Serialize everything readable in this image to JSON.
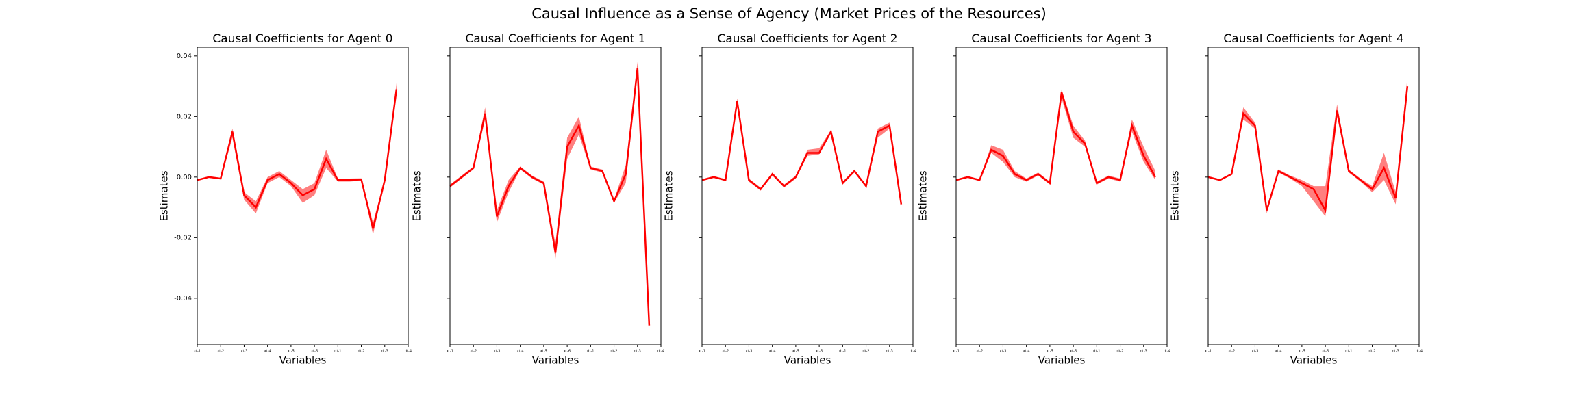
{
  "title": "Causal Influence as a Sense of Agency (Market Prices of the Resources)",
  "chart_data": [
    {
      "type": "line",
      "title": "Causal Coefficients for Agent 0",
      "xlabel": "Variables",
      "ylabel": "Estimates",
      "color": "#ff0000",
      "x": [
        0,
        1,
        2,
        3,
        4,
        5,
        6,
        7,
        8,
        9,
        10,
        11,
        12,
        13,
        14,
        15,
        16,
        17
      ],
      "values": [
        -0.001,
        0.0,
        -0.0005,
        0.015,
        -0.006,
        -0.01,
        -0.001,
        0.001,
        -0.002,
        -0.006,
        -0.004,
        0.006,
        -0.001,
        -0.001,
        -0.0008,
        -0.017,
        -0.001,
        0.029
      ],
      "lower": [
        -0.0012,
        -0.0002,
        -0.0008,
        0.013,
        -0.0075,
        -0.012,
        -0.002,
        0.0,
        -0.003,
        -0.0085,
        -0.006,
        0.003,
        -0.0015,
        -0.0015,
        -0.0012,
        -0.019,
        -0.0015,
        0.027
      ],
      "upper": [
        -0.0008,
        0.0003,
        -0.0002,
        0.016,
        -0.005,
        -0.008,
        0.0,
        0.002,
        -0.001,
        -0.004,
        -0.002,
        0.009,
        -0.0005,
        -0.0005,
        -0.0004,
        -0.015,
        -0.0005,
        0.031
      ],
      "xlim": [
        0,
        18
      ],
      "ylim": [
        -0.0554,
        0.0429
      ],
      "yticks": [
        0.04,
        0.02,
        {
          "value": 0,
          "label": "0.00"
        },
        -0.02,
        -0.04
      ],
      "xticks": [
        {
          "value": 0,
          "label": "xt-1"
        },
        {
          "value": 2,
          "label": "xt-2"
        },
        {
          "value": 4,
          "label": "xt-3"
        },
        {
          "value": 6,
          "label": "xt-4"
        },
        {
          "value": 8,
          "label": "xt-5"
        },
        {
          "value": 10,
          "label": "xt-6"
        },
        {
          "value": 12,
          "label": "dt-1"
        },
        {
          "value": 14,
          "label": "dt-2"
        },
        {
          "value": 16,
          "label": "dt-3"
        },
        {
          "value": 18,
          "label": "dt-4"
        }
      ]
    },
    {
      "type": "line",
      "title": "Causal Coefficients for Agent 1",
      "xlabel": "Variables",
      "ylabel": "Estimates",
      "color": "#ff0000",
      "x": [
        0,
        1,
        2,
        3,
        4,
        5,
        6,
        7,
        8,
        9,
        10,
        11,
        12,
        13,
        14,
        15,
        16,
        17
      ],
      "values": [
        -0.003,
        0.0,
        0.003,
        0.021,
        -0.013,
        -0.003,
        0.003,
        0.0,
        -0.002,
        -0.025,
        0.01,
        0.017,
        0.003,
        0.002,
        -0.008,
        0.001,
        0.036,
        -0.049
      ],
      "lower": [
        -0.0035,
        -0.0005,
        0.0025,
        0.019,
        -0.015,
        -0.005,
        0.0025,
        -0.0005,
        -0.0025,
        -0.027,
        0.006,
        0.014,
        0.0025,
        0.0015,
        -0.0085,
        -0.002,
        0.034,
        -0.051
      ],
      "upper": [
        -0.0025,
        0.0005,
        0.0035,
        0.023,
        -0.011,
        -0.001,
        0.0035,
        0.0005,
        -0.0015,
        -0.022,
        0.013,
        0.02,
        0.0035,
        0.0025,
        -0.0075,
        0.004,
        0.038,
        -0.047
      ],
      "xlim": [
        0,
        18
      ],
      "ylim": [
        -0.0554,
        0.0429
      ],
      "yticks": [
        0.04,
        0.02,
        0,
        -0.02,
        -0.04
      ],
      "xticks": [
        {
          "value": 0,
          "label": "xt-1"
        },
        {
          "value": 2,
          "label": "xt-2"
        },
        {
          "value": 4,
          "label": "xt-3"
        },
        {
          "value": 6,
          "label": "xt-4"
        },
        {
          "value": 8,
          "label": "xt-5"
        },
        {
          "value": 10,
          "label": "xt-6"
        },
        {
          "value": 12,
          "label": "dt-1"
        },
        {
          "value": 14,
          "label": "dt-2"
        },
        {
          "value": 16,
          "label": "dt-3"
        },
        {
          "value": 18,
          "label": "dt-4"
        }
      ]
    },
    {
      "type": "line",
      "title": "Causal Coefficients for Agent 2",
      "xlabel": "Variables",
      "ylabel": "Estimates",
      "color": "#ff0000",
      "x": [
        0,
        1,
        2,
        3,
        4,
        5,
        6,
        7,
        8,
        9,
        10,
        11,
        12,
        13,
        14,
        15,
        16,
        17
      ],
      "values": [
        -0.001,
        0.0,
        -0.001,
        0.025,
        -0.001,
        -0.004,
        0.001,
        -0.003,
        0.0,
        0.008,
        0.008,
        0.015,
        -0.002,
        0.002,
        -0.003,
        0.015,
        0.017,
        -0.009
      ],
      "lower": [
        -0.0013,
        -0.0003,
        -0.0013,
        0.024,
        -0.0015,
        -0.0045,
        0.0005,
        -0.0035,
        -0.0005,
        0.007,
        0.0075,
        0.0145,
        -0.0025,
        0.0015,
        -0.0035,
        0.013,
        0.016,
        -0.01
      ],
      "upper": [
        -0.0007,
        0.0003,
        -0.0007,
        0.026,
        -0.0005,
        -0.0035,
        0.0015,
        -0.0025,
        0.0005,
        0.009,
        0.0095,
        0.0155,
        -0.0015,
        0.0025,
        -0.0025,
        0.016,
        0.018,
        -0.008
      ],
      "xlim": [
        0,
        18
      ],
      "ylim": [
        -0.0554,
        0.0429
      ],
      "yticks": [
        0.04,
        0.02,
        0,
        -0.02,
        -0.04
      ],
      "xticks": [
        {
          "value": 0,
          "label": "xt-1"
        },
        {
          "value": 2,
          "label": "xt-2"
        },
        {
          "value": 4,
          "label": "xt-3"
        },
        {
          "value": 6,
          "label": "xt-4"
        },
        {
          "value": 8,
          "label": "xt-5"
        },
        {
          "value": 10,
          "label": "xt-6"
        },
        {
          "value": 12,
          "label": "dt-1"
        },
        {
          "value": 14,
          "label": "dt-2"
        },
        {
          "value": 16,
          "label": "dt-3"
        },
        {
          "value": 18,
          "label": "dt-4"
        }
      ]
    },
    {
      "type": "line",
      "title": "Causal Coefficients for Agent 3",
      "xlabel": "Variables",
      "ylabel": "Estimates",
      "color": "#ff0000",
      "x": [
        0,
        1,
        2,
        3,
        4,
        5,
        6,
        7,
        8,
        9,
        10,
        11,
        12,
        13,
        14,
        15,
        16,
        17
      ],
      "values": [
        -0.001,
        0.0,
        -0.001,
        0.009,
        0.007,
        0.001,
        -0.001,
        0.001,
        -0.002,
        0.028,
        0.015,
        0.011,
        -0.002,
        0.0,
        -0.001,
        0.017,
        0.007,
        0.0
      ],
      "lower": [
        -0.0013,
        -0.0003,
        -0.0013,
        0.008,
        0.005,
        0.0,
        -0.0015,
        0.0005,
        -0.0025,
        0.026,
        0.013,
        0.01,
        -0.0025,
        -0.0005,
        -0.0015,
        0.015,
        0.005,
        -0.001
      ],
      "upper": [
        -0.0007,
        0.0003,
        -0.0007,
        0.0105,
        0.009,
        0.002,
        -0.0005,
        0.0015,
        -0.0015,
        0.029,
        0.017,
        0.012,
        -0.0015,
        0.0005,
        -0.0005,
        0.019,
        0.01,
        0.002
      ],
      "xlim": [
        0,
        18
      ],
      "ylim": [
        -0.0554,
        0.0429
      ],
      "yticks": [
        0.04,
        0.02,
        0,
        -0.02,
        -0.04
      ],
      "xticks": [
        {
          "value": 0,
          "label": "xt-1"
        },
        {
          "value": 2,
          "label": "xt-2"
        },
        {
          "value": 4,
          "label": "xt-3"
        },
        {
          "value": 6,
          "label": "xt-4"
        },
        {
          "value": 8,
          "label": "xt-5"
        },
        {
          "value": 10,
          "label": "xt-6"
        },
        {
          "value": 12,
          "label": "dt-1"
        },
        {
          "value": 14,
          "label": "dt-2"
        },
        {
          "value": 16,
          "label": "dt-3"
        },
        {
          "value": 18,
          "label": "dt-4"
        }
      ]
    },
    {
      "type": "line",
      "title": "Causal Coefficients for Agent 4",
      "xlabel": "Variables",
      "ylabel": "Estimates",
      "color": "#ff0000",
      "x": [
        0,
        1,
        2,
        3,
        4,
        5,
        6,
        7,
        8,
        9,
        10,
        11,
        12,
        13,
        14,
        15,
        16,
        17
      ],
      "values": [
        0.0,
        -0.001,
        0.001,
        0.021,
        0.017,
        -0.011,
        0.002,
        0.0,
        -0.002,
        -0.004,
        -0.011,
        0.022,
        0.002,
        -0.001,
        -0.004,
        0.003,
        -0.007,
        0.03
      ],
      "lower": [
        -0.0003,
        -0.0013,
        0.0007,
        0.019,
        0.016,
        -0.012,
        0.0015,
        -0.0005,
        -0.003,
        -0.008,
        -0.013,
        0.02,
        0.0015,
        -0.0015,
        -0.005,
        -0.001,
        -0.009,
        0.028
      ],
      "upper": [
        0.0003,
        -0.0007,
        0.0013,
        0.023,
        0.018,
        -0.01,
        0.0025,
        0.0005,
        -0.001,
        -0.003,
        -0.003,
        0.024,
        0.0025,
        -0.0005,
        -0.003,
        0.008,
        -0.005,
        0.033
      ],
      "xlim": [
        0,
        18
      ],
      "ylim": [
        -0.0554,
        0.0429
      ],
      "yticks": [
        0.04,
        0.02,
        0,
        -0.02,
        -0.04
      ],
      "xticks": [
        {
          "value": 0,
          "label": "xt-1"
        },
        {
          "value": 2,
          "label": "xt-2"
        },
        {
          "value": 4,
          "label": "xt-3"
        },
        {
          "value": 6,
          "label": "xt-4"
        },
        {
          "value": 8,
          "label": "xt-5"
        },
        {
          "value": 10,
          "label": "xt-6"
        },
        {
          "value": 12,
          "label": "dt-1"
        },
        {
          "value": 14,
          "label": "dt-2"
        },
        {
          "value": 16,
          "label": "dt-3"
        },
        {
          "value": 18,
          "label": "dt-4"
        }
      ]
    }
  ]
}
